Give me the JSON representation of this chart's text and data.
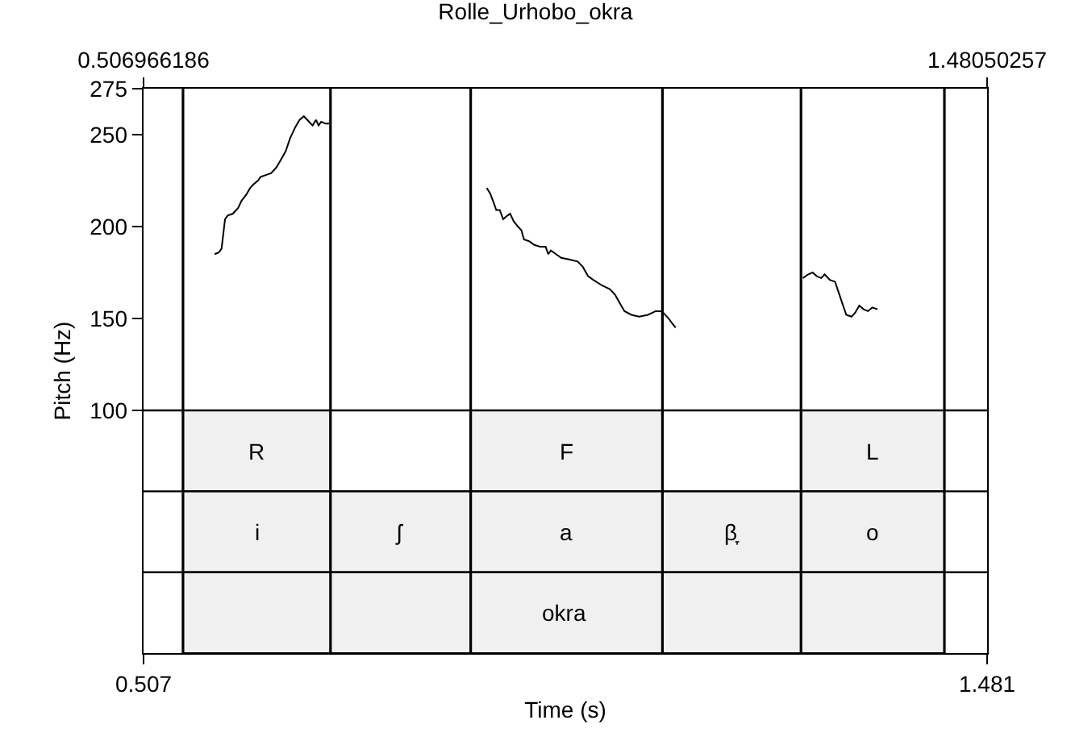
{
  "chart_data": {
    "type": "line",
    "title": "Rolle_Urhobo_okra",
    "xlabel": "Time (s)",
    "ylabel": "Pitch (Hz)",
    "xlim": [
      0.506966186,
      1.48050257
    ],
    "xticks": [
      {
        "value": 0.506966186,
        "label": "0.507"
      },
      {
        "value": 1.48050257,
        "label": "1.481"
      }
    ],
    "x2lim": [
      0.506966186,
      1.48050257
    ],
    "x2ticks": [
      0.506966186,
      1.48050257
    ],
    "ylim": [
      -32,
      275
    ],
    "yticks": [
      100,
      150,
      200,
      250,
      275
    ],
    "grid": false,
    "marker": "none",
    "line_style": "solid",
    "series": [
      {
        "color": "#000000",
        "x": [
          0.589,
          0.594,
          0.597,
          0.601,
          0.604,
          0.61,
          0.616,
          0.62,
          0.625,
          0.63,
          0.634,
          0.639,
          0.642,
          0.648,
          0.654,
          0.66,
          0.665,
          0.671,
          0.676,
          0.682,
          0.687,
          0.692,
          0.696,
          0.702,
          0.706,
          0.709,
          0.712,
          0.717,
          0.721,
          0.811,
          0.903,
          0.907,
          0.911,
          0.914,
          0.918,
          0.922,
          0.927,
          0.93,
          0.934,
          0.939,
          0.943,
          0.946,
          0.952,
          0.958,
          0.965,
          0.971,
          0.974,
          0.977,
          0.983,
          0.989,
          0.999,
          1.008,
          1.014,
          1.02,
          1.026,
          1.036,
          1.045,
          1.051,
          1.057,
          1.062,
          1.07,
          1.079,
          1.089,
          1.098,
          1.104,
          1.107,
          1.113,
          1.116,
          1.121,
          1.195,
          1.268,
          1.274,
          1.279,
          1.284,
          1.289,
          1.293,
          1.299,
          1.305,
          1.31,
          1.315,
          1.318,
          1.324,
          1.328,
          1.333,
          1.338,
          1.343,
          1.348,
          1.354
        ],
        "values": [
          185,
          186,
          188,
          204,
          206,
          207,
          210,
          214,
          217,
          221,
          223,
          225,
          227,
          228,
          229,
          232,
          236,
          241,
          248,
          254,
          258,
          260,
          258,
          255,
          258,
          255,
          257,
          256,
          256,
          null,
          221,
          218,
          213,
          209,
          209,
          204,
          206,
          207,
          203,
          200,
          198,
          193,
          192,
          190,
          189,
          189,
          185,
          187,
          185,
          183,
          182,
          181,
          178,
          173,
          171,
          168,
          166,
          163,
          158,
          154,
          152,
          151,
          152,
          154,
          154,
          153,
          150,
          148,
          145,
          null,
          172,
          174,
          175,
          173,
          172,
          174,
          171,
          170,
          163,
          156,
          152,
          151,
          153,
          157,
          155,
          154,
          156,
          155
        ]
      }
    ],
    "ref_lines": [
      {
        "axis": "x",
        "value": 0.5525
      },
      {
        "axis": "x",
        "value": 0.7227
      },
      {
        "axis": "x",
        "value": 0.8845
      },
      {
        "axis": "x",
        "value": 1.1058
      },
      {
        "axis": "x",
        "value": 1.2657
      },
      {
        "axis": "x",
        "value": 1.4312
      },
      {
        "axis": "y",
        "value": 100
      },
      {
        "axis": "y",
        "value": 56
      },
      {
        "axis": "y",
        "value": 12
      }
    ],
    "bands": [
      {
        "axis": "x",
        "from": 0.5525,
        "to": 0.7227,
        "label": "R",
        "color": "#f0f0f0"
      },
      {
        "axis": "x",
        "from": 0.8845,
        "to": 1.1058,
        "label": "F",
        "color": "#f0f0f0"
      },
      {
        "axis": "x",
        "from": 1.2657,
        "to": 1.4312,
        "label": "L",
        "color": "#f0f0f0"
      },
      {
        "axis": "x",
        "from": 0.5525,
        "to": 0.7227,
        "label": "i",
        "color": "#f0f0f0"
      },
      {
        "axis": "x",
        "from": 0.7227,
        "to": 0.8845,
        "label": "ʃ",
        "color": "#f0f0f0"
      },
      {
        "axis": "x",
        "from": 0.8845,
        "to": 1.1058,
        "label": "a",
        "color": "#f0f0f0"
      },
      {
        "axis": "x",
        "from": 1.1058,
        "to": 1.2657,
        "label": "β̞",
        "color": "#f0f0f0"
      },
      {
        "axis": "x",
        "from": 1.2657,
        "to": 1.4312,
        "label": "o",
        "color": "#f0f0f0"
      },
      {
        "axis": "x",
        "from": 0.5525,
        "to": 1.4312,
        "label": "okra",
        "color": "#f0f0f0"
      }
    ]
  }
}
